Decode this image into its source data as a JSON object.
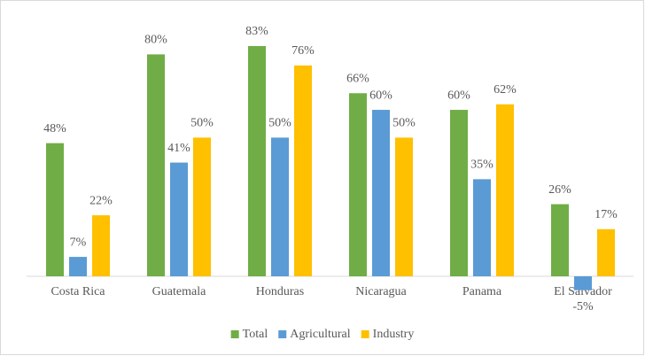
{
  "chart_data": {
    "type": "bar",
    "categories": [
      "Costa Rica",
      "Guatemala",
      "Honduras",
      "Nicaragua",
      "Panama",
      "El Salvador"
    ],
    "series": [
      {
        "name": "Total",
        "color": "#70ad47",
        "values": [
          48,
          80,
          83,
          66,
          60,
          26
        ],
        "value_labels": [
          "48%",
          "80%",
          "83%",
          "66%",
          "60%",
          "26%"
        ]
      },
      {
        "name": "Agricultural",
        "color": "#5b9bd5",
        "values": [
          7,
          41,
          50,
          60,
          35,
          -5
        ],
        "value_labels": [
          "7%",
          "41%",
          "50%",
          "60%",
          "35%",
          "-5%"
        ]
      },
      {
        "name": "Industry",
        "color": "#ffc000",
        "values": [
          22,
          50,
          76,
          50,
          62,
          17
        ],
        "value_labels": [
          "22%",
          "50%",
          "76%",
          "50%",
          "62%",
          "17%"
        ]
      }
    ],
    "legend": "bottom"
  }
}
